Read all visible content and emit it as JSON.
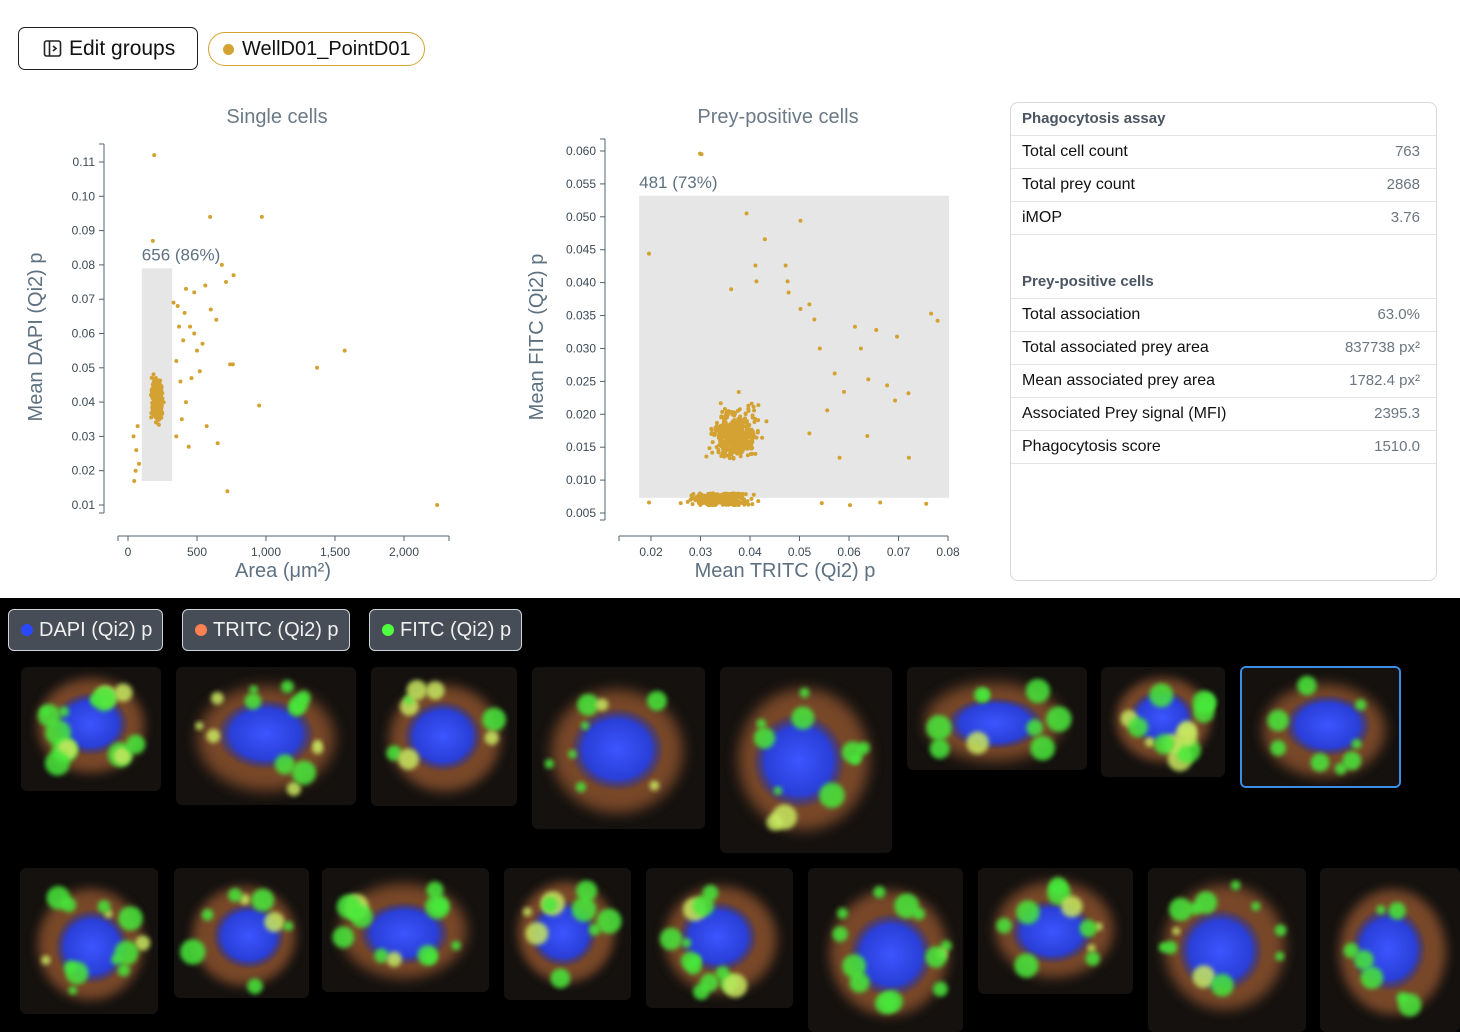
{
  "toolbar": {
    "edit_groups_label": "Edit groups"
  },
  "group": {
    "name": "WellD01_PointD01",
    "color": "#d4a232"
  },
  "stats": {
    "section1_title": "Phagocytosis assay",
    "section1_rows": [
      {
        "label": "Total cell count",
        "value": "763"
      },
      {
        "label": "Total prey count",
        "value": "2868"
      },
      {
        "label": "iMOP",
        "value": "3.76"
      }
    ],
    "section2_title": "Prey-positive cells",
    "section2_rows": [
      {
        "label": "Total association",
        "value": "63.0%"
      },
      {
        "label": "Total associated prey area",
        "value": "837738 px²"
      },
      {
        "label": "Mean associated prey area",
        "value": "1782.4 px²"
      },
      {
        "label": "Associated Prey signal (MFI)",
        "value": "2395.3"
      },
      {
        "label": "Phagocytosis score",
        "value": "1510.0"
      }
    ]
  },
  "channels": [
    {
      "label": "DAPI (Qi2) p",
      "color": "#2a49ff"
    },
    {
      "label": "TRITC (Qi2) p",
      "color": "#ff8050"
    },
    {
      "label": "FITC (Qi2) p",
      "color": "#50ff40"
    }
  ],
  "gallery": {
    "row1_count": 8,
    "row2_count": 9
  },
  "chart_data": [
    {
      "type": "scatter",
      "title": "Single cells",
      "xlabel": "Area (μm²)",
      "ylabel": "Mean DAPI (Qi2) p",
      "xlim": [
        -80,
        2330
      ],
      "ylim": [
        0.004,
        0.117
      ],
      "xticks": [
        0,
        500,
        1000,
        1500,
        2000
      ],
      "xtick_labels": [
        "0",
        "500",
        "1,000",
        "1,500",
        "2,000"
      ],
      "yticks": [
        0.01,
        0.02,
        0.03,
        0.04,
        0.05,
        0.06,
        0.07,
        0.08,
        0.09,
        0.1,
        0.11
      ],
      "ytick_labels": [
        "0.01",
        "0.02",
        "0.03",
        "0.04",
        "0.05",
        "0.06",
        "0.07",
        "0.08",
        "0.09",
        "0.10",
        "0.11"
      ],
      "gate": {
        "x0": 100,
        "x1": 320,
        "y0": 0.017,
        "y1": 0.079,
        "label": "656 (86%)"
      },
      "color": "#d4a232",
      "points": [
        [
          190,
          0.112
        ],
        [
          595,
          0.094
        ],
        [
          970,
          0.094
        ],
        [
          180,
          0.087
        ],
        [
          680,
          0.08
        ],
        [
          765,
          0.077
        ],
        [
          710,
          0.075
        ],
        [
          560,
          0.074
        ],
        [
          420,
          0.073
        ],
        [
          480,
          0.072
        ],
        [
          600,
          0.067
        ],
        [
          640,
          0.064
        ],
        [
          450,
          0.062
        ],
        [
          540,
          0.057
        ],
        [
          1570,
          0.055
        ],
        [
          760,
          0.051
        ],
        [
          740,
          0.051
        ],
        [
          1370,
          0.05
        ],
        [
          950,
          0.039
        ],
        [
          570,
          0.033
        ],
        [
          650,
          0.028
        ],
        [
          720,
          0.014
        ],
        [
          2240,
          0.01
        ],
        [
          40,
          0.03
        ],
        [
          60,
          0.026
        ],
        [
          55,
          0.02
        ],
        [
          45,
          0.017
        ],
        [
          70,
          0.033
        ],
        [
          80,
          0.022
        ],
        [
          350,
          0.052
        ],
        [
          380,
          0.046
        ],
        [
          400,
          0.058
        ],
        [
          420,
          0.04
        ],
        [
          460,
          0.047
        ],
        [
          500,
          0.055
        ],
        [
          370,
          0.062
        ],
        [
          330,
          0.069
        ],
        [
          410,
          0.066
        ],
        [
          480,
          0.06
        ],
        [
          390,
          0.035
        ],
        [
          350,
          0.03
        ],
        [
          440,
          0.027
        ],
        [
          360,
          0.068
        ],
        [
          520,
          0.049
        ]
      ]
    },
    {
      "type": "scatter",
      "title": "Prey-positive cells",
      "xlabel": "Mean TRITC (Qi2) p",
      "ylabel": "Mean FITC (Qi2) p",
      "xlim": [
        0.014,
        0.082
      ],
      "ylim": [
        0.004,
        0.062
      ],
      "xticks": [
        0.02,
        0.03,
        0.04,
        0.05,
        0.06,
        0.07,
        0.08
      ],
      "xtick_labels": [
        "0.02",
        "0.03",
        "0.04",
        "0.05",
        "0.06",
        "0.07",
        "0.08"
      ],
      "yticks": [
        0.005,
        0.01,
        0.015,
        0.02,
        0.025,
        0.03,
        0.035,
        0.04,
        0.045,
        0.05,
        0.055,
        0.06
      ],
      "ytick_labels": [
        "0.005",
        "0.010",
        "0.015",
        "0.020",
        "0.025",
        "0.030",
        "0.035",
        "0.040",
        "0.045",
        "0.050",
        "0.055",
        "0.060"
      ],
      "gate": {
        "x0": 0.0176,
        "x1": 0.0802,
        "y0": 0.0073,
        "y1": 0.0532,
        "label": "481 (73%)"
      },
      "color": "#d4a232",
      "points": [
        [
          0.0299,
          0.0596
        ],
        [
          0.0302,
          0.0595
        ],
        [
          0.0393,
          0.0505
        ],
        [
          0.0502,
          0.0494
        ],
        [
          0.043,
          0.0466
        ],
        [
          0.0196,
          0.0444
        ],
        [
          0.0472,
          0.0426
        ],
        [
          0.0411,
          0.0426
        ],
        [
          0.0476,
          0.0402
        ],
        [
          0.0413,
          0.0402
        ],
        [
          0.0478,
          0.0385
        ],
        [
          0.0362,
          0.039
        ],
        [
          0.0766,
          0.0353
        ],
        [
          0.0779,
          0.0342
        ],
        [
          0.052,
          0.0367
        ],
        [
          0.0502,
          0.036
        ],
        [
          0.0612,
          0.0333
        ],
        [
          0.0655,
          0.0328
        ],
        [
          0.0697,
          0.0318
        ],
        [
          0.0624,
          0.03
        ],
        [
          0.053,
          0.0344
        ],
        [
          0.0541,
          0.03
        ],
        [
          0.0571,
          0.0262
        ],
        [
          0.0639,
          0.0253
        ],
        [
          0.0677,
          0.0244
        ],
        [
          0.059,
          0.0234
        ],
        [
          0.072,
          0.0232
        ],
        [
          0.0693,
          0.0221
        ],
        [
          0.0556,
          0.0206
        ],
        [
          0.0637,
          0.0167
        ],
        [
          0.0721,
          0.0134
        ],
        [
          0.0581,
          0.0134
        ],
        [
          0.052,
          0.0171
        ],
        [
          0.0663,
          0.0066
        ],
        [
          0.0756,
          0.0064
        ],
        [
          0.0602,
          0.0062
        ],
        [
          0.0545,
          0.0065
        ],
        [
          0.0196,
          0.0066
        ],
        [
          0.026,
          0.0065
        ]
      ]
    }
  ]
}
